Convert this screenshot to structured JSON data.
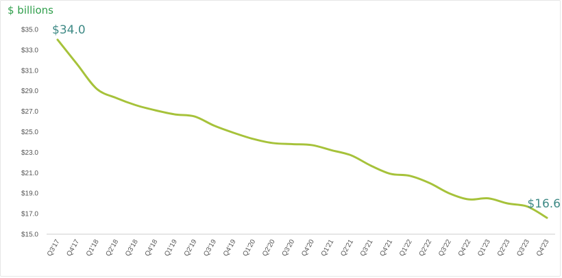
{
  "chart_data": {
    "type": "line",
    "ylabel": "$ billions",
    "ylim": [
      15,
      35
    ],
    "ytick_labels": [
      "$35.0",
      "$33.0",
      "$31.0",
      "$29.0",
      "$27.0",
      "$25.0",
      "$23.0",
      "$21.0",
      "$19.0",
      "$17.0",
      "$15.0"
    ],
    "ytick_values": [
      35,
      33,
      31,
      29,
      27,
      25,
      23,
      21,
      19,
      17,
      15
    ],
    "categories": [
      "Q3'17",
      "Q4'17",
      "Q1'18",
      "Q2'18",
      "Q3'18",
      "Q4'18",
      "Q1'19",
      "Q2'19",
      "Q3'19",
      "Q4'19",
      "Q1'20",
      "Q2'20",
      "Q3'20",
      "Q4'20",
      "Q1'21",
      "Q2'21",
      "Q3'21",
      "Q4'21",
      "Q1'22",
      "Q2'22",
      "Q3'22",
      "Q4'22",
      "Q1'23",
      "Q2'23",
      "Q3'23",
      "Q4'23"
    ],
    "series": [
      {
        "values": [
          34.0,
          31.6,
          29.2,
          28.3,
          27.6,
          27.1,
          26.7,
          26.5,
          25.6,
          24.9,
          24.3,
          23.9,
          23.8,
          23.7,
          23.2,
          22.7,
          21.7,
          20.9,
          20.7,
          20.0,
          19.0,
          18.4,
          18.5,
          18.0,
          17.7,
          16.6
        ],
        "color": "#a6c23a"
      }
    ],
    "annotations": [
      {
        "index": 0,
        "text": "$34.0"
      },
      {
        "index": 25,
        "text": "$16.6"
      }
    ],
    "grid": false
  }
}
